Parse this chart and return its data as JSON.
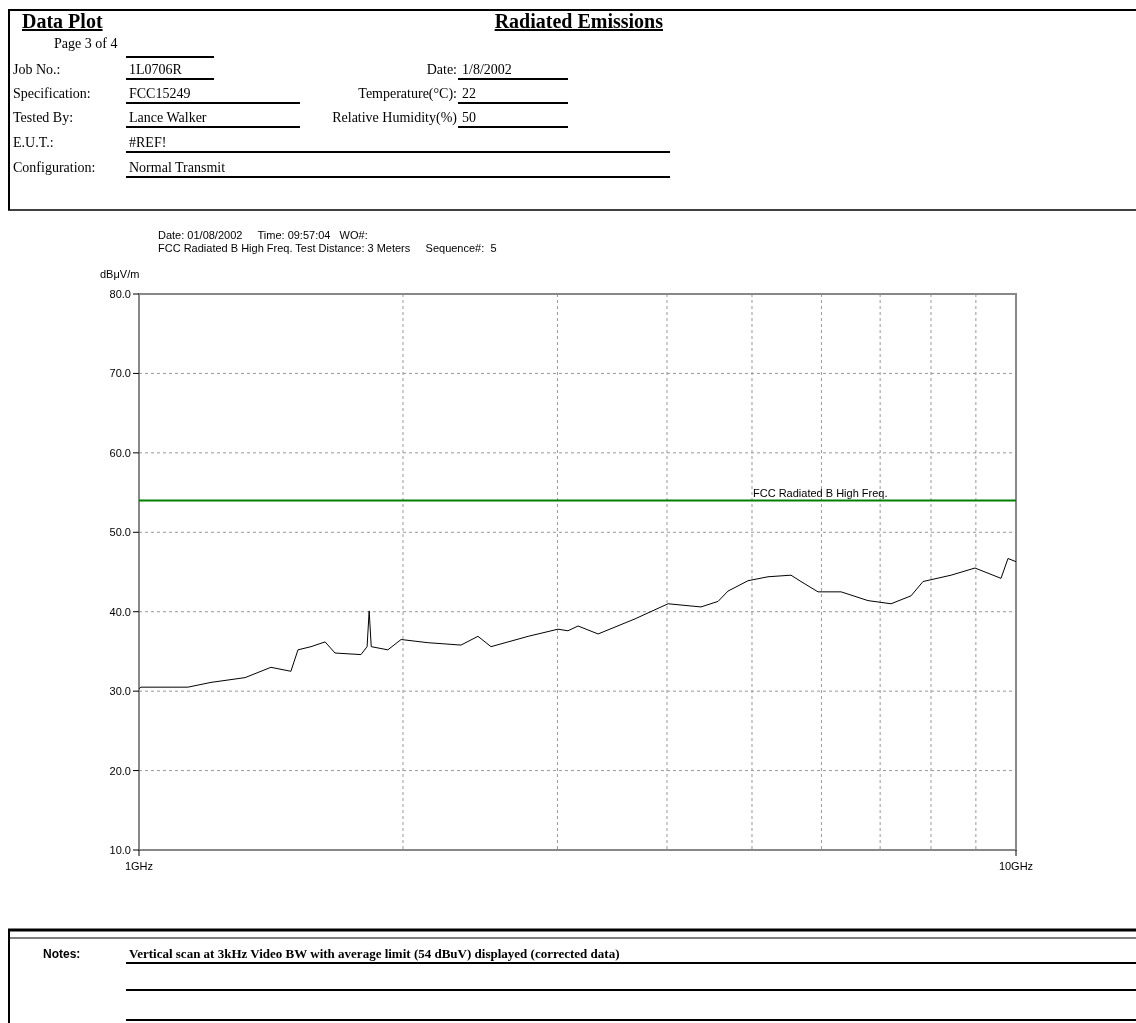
{
  "chart_data": {
    "type": "line",
    "title": "Radiated Emissions",
    "subtitle": "Date: 01/08/2002     Time: 09:57:04   WO#:\nFCC Radiated B High Freq. Test Distance: 3 Meters     Sequence#:  5",
    "ylabel": "dBμV/m",
    "annotations": [
      "Data Plot",
      "Page 3 of 4",
      "Job No.:",
      "1L0706R",
      "Date:",
      "1/8/2002",
      "Specification:",
      "FCC15249",
      "Temperature(°C):",
      "22",
      "Tested By:",
      "Lance Walker",
      "Relative Humidity(%)",
      "50",
      "E.U.T.:",
      "#REF!",
      "Configuration:",
      "Normal Transmit",
      "Notes:",
      "Vertical scan at 3kHz Video BW with average limit (54 dBuV) displayed (corrected data)"
    ],
    "log": "x",
    "grid": true,
    "marker": "none",
    "line_style": "solid",
    "xlim": [
      1,
      10
    ],
    "xticks": [
      {
        "value": 1,
        "label": "1GHz"
      },
      {
        "value": 2,
        "label": null
      },
      {
        "value": 3,
        "label": null
      },
      {
        "value": 4,
        "label": null
      },
      {
        "value": 5,
        "label": null
      },
      {
        "value": 6,
        "label": null
      },
      {
        "value": 7,
        "label": null
      },
      {
        "value": 8,
        "label": null
      },
      {
        "value": 9,
        "label": null
      },
      {
        "value": 10,
        "label": "10GHz"
      }
    ],
    "ylim": [
      10,
      80
    ],
    "yticks": [
      {
        "value": 10,
        "label": "10.0"
      },
      {
        "value": 20,
        "label": "20.0"
      },
      {
        "value": 30,
        "label": "30.0"
      },
      {
        "value": 40,
        "label": "40.0"
      },
      {
        "value": 50,
        "label": "50.0"
      },
      {
        "value": 60,
        "label": "60.0"
      },
      {
        "value": 70,
        "label": "70.0"
      },
      {
        "value": 80,
        "label": "80.0"
      }
    ],
    "ref_lines": [
      {
        "axis": "y",
        "value": 54,
        "label": "FCC Radiated B High Freq.",
        "color": "#008000",
        "line_style": "solid"
      }
    ],
    "series": [
      {
        "color": "#000000",
        "x": [
          1.0,
          1.005,
          1.137,
          1.208,
          1.321,
          1.414,
          1.49,
          1.518,
          1.571,
          1.63,
          1.673,
          1.791,
          1.82,
          1.83,
          1.84,
          1.922,
          1.99,
          2.135,
          2.329,
          2.435,
          2.52,
          2.778,
          3.004,
          3.084,
          3.167,
          3.338,
          3.678,
          4.011,
          4.373,
          4.574,
          4.695,
          4.948,
          5.214,
          5.539,
          5.686,
          5.946,
          6.318,
          6.78,
          7.203,
          7.591,
          7.834,
          8.433,
          8.979,
          9.614,
          9.792,
          10.0
        ],
        "values": [
          30.3,
          30.5,
          30.5,
          31.1,
          31.7,
          33.0,
          32.5,
          35.2,
          35.6,
          36.2,
          34.8,
          34.6,
          35.6,
          40.1,
          35.6,
          35.2,
          36.5,
          36.1,
          35.8,
          36.9,
          35.6,
          36.9,
          37.8,
          37.6,
          38.2,
          37.2,
          39.1,
          41.0,
          40.6,
          41.3,
          42.6,
          43.9,
          44.4,
          44.6,
          43.8,
          42.5,
          42.5,
          41.4,
          41.0,
          42.0,
          43.8,
          44.6,
          45.5,
          44.2,
          46.7,
          46.3
        ]
      }
    ]
  }
}
